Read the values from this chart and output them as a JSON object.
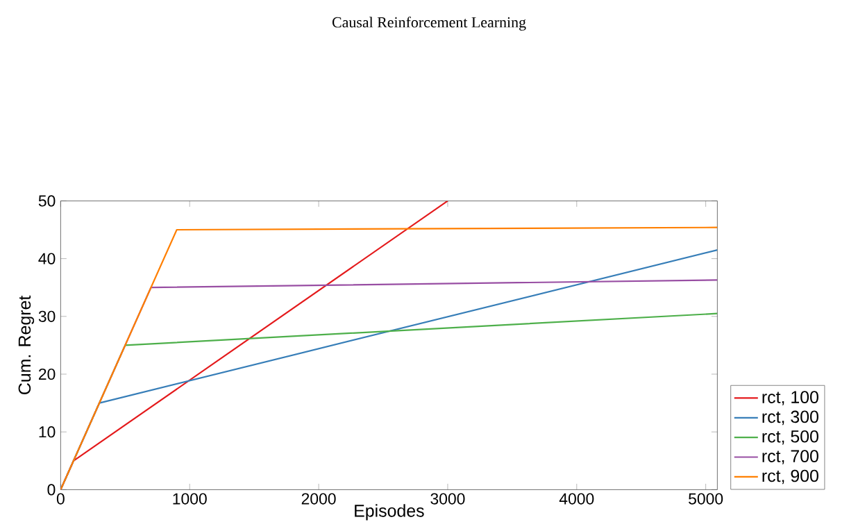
{
  "chart_data": {
    "type": "line",
    "title": "Causal Reinforcement Learning",
    "xlabel": "Episodes",
    "ylabel": "Cum. Regret",
    "xlim": [
      0,
      5090
    ],
    "ylim": [
      0,
      50
    ],
    "xticks": [
      0,
      1000,
      2000,
      3000,
      4000,
      5000
    ],
    "yticks": [
      0,
      10,
      20,
      30,
      40,
      50
    ],
    "grid": false,
    "legend": "right",
    "marker": "none",
    "line_style": "solid",
    "series": [
      {
        "name": "rct, 100",
        "color": "#e41a1c",
        "x": [
          0,
          100,
          3000
        ],
        "values": [
          0,
          5,
          50
        ]
      },
      {
        "name": "rct, 300",
        "color": "#377eb8",
        "x": [
          0,
          300,
          5090
        ],
        "values": [
          0,
          15,
          41.5
        ]
      },
      {
        "name": "rct, 500",
        "color": "#4daf4a",
        "x": [
          0,
          500,
          5090
        ],
        "values": [
          0,
          25,
          30.5
        ]
      },
      {
        "name": "rct, 700",
        "color": "#984ea3",
        "x": [
          0,
          700,
          5090
        ],
        "values": [
          0,
          35,
          36.3
        ]
      },
      {
        "name": "rct, 900",
        "color": "#ff7f00",
        "x": [
          0,
          900,
          5090
        ],
        "values": [
          0,
          45,
          45.4
        ]
      }
    ]
  }
}
